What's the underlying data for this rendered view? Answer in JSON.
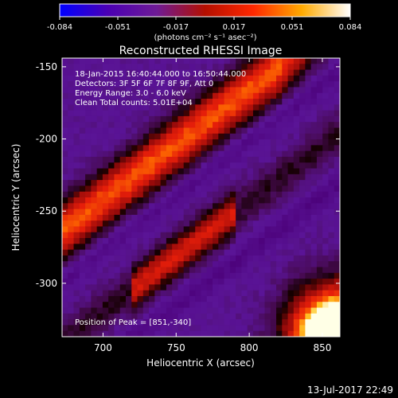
{
  "colorbar": {
    "ticks": [
      "-0.084",
      "-0.051",
      "-0.017",
      "0.017",
      "0.051",
      "0.084"
    ],
    "unit_label": "(photons cm⁻² s⁻¹ asec⁻²)",
    "colors": [
      "#0000ff",
      "#4b00b4",
      "#6e1b96",
      "#b40f00",
      "#ff2800",
      "#ffaa00",
      "#ffffff"
    ]
  },
  "chart_data": {
    "type": "heatmap",
    "title": "Reconstructed RHESSI Image",
    "xlabel": "Heliocentric X (arcsec)",
    "ylabel": "Heliocentric Y (arcsec)",
    "xlim": [
      672,
      862
    ],
    "ylim": [
      -337,
      -144
    ],
    "x_ticks": [
      700,
      750,
      800,
      850
    ],
    "y_ticks": [
      -150,
      -200,
      -250,
      -300
    ],
    "annotations": [
      "18-Jan-2015 16:40:44.000 to 16:50:44.000",
      "Detectors: 3F 5F 6F 7F 8F 9F, Att 0",
      "Energy Range: 3.0 - 6.0 keV",
      "Clean     Total counts: 5.01E+04"
    ],
    "peak_label": "Position of Peak = [851,-340]",
    "peak_position": [
      851,
      -340
    ],
    "value_range": [
      -0.084,
      0.084
    ]
  },
  "footer": {
    "date_stamp": "13-Jul-2017 22:49"
  }
}
